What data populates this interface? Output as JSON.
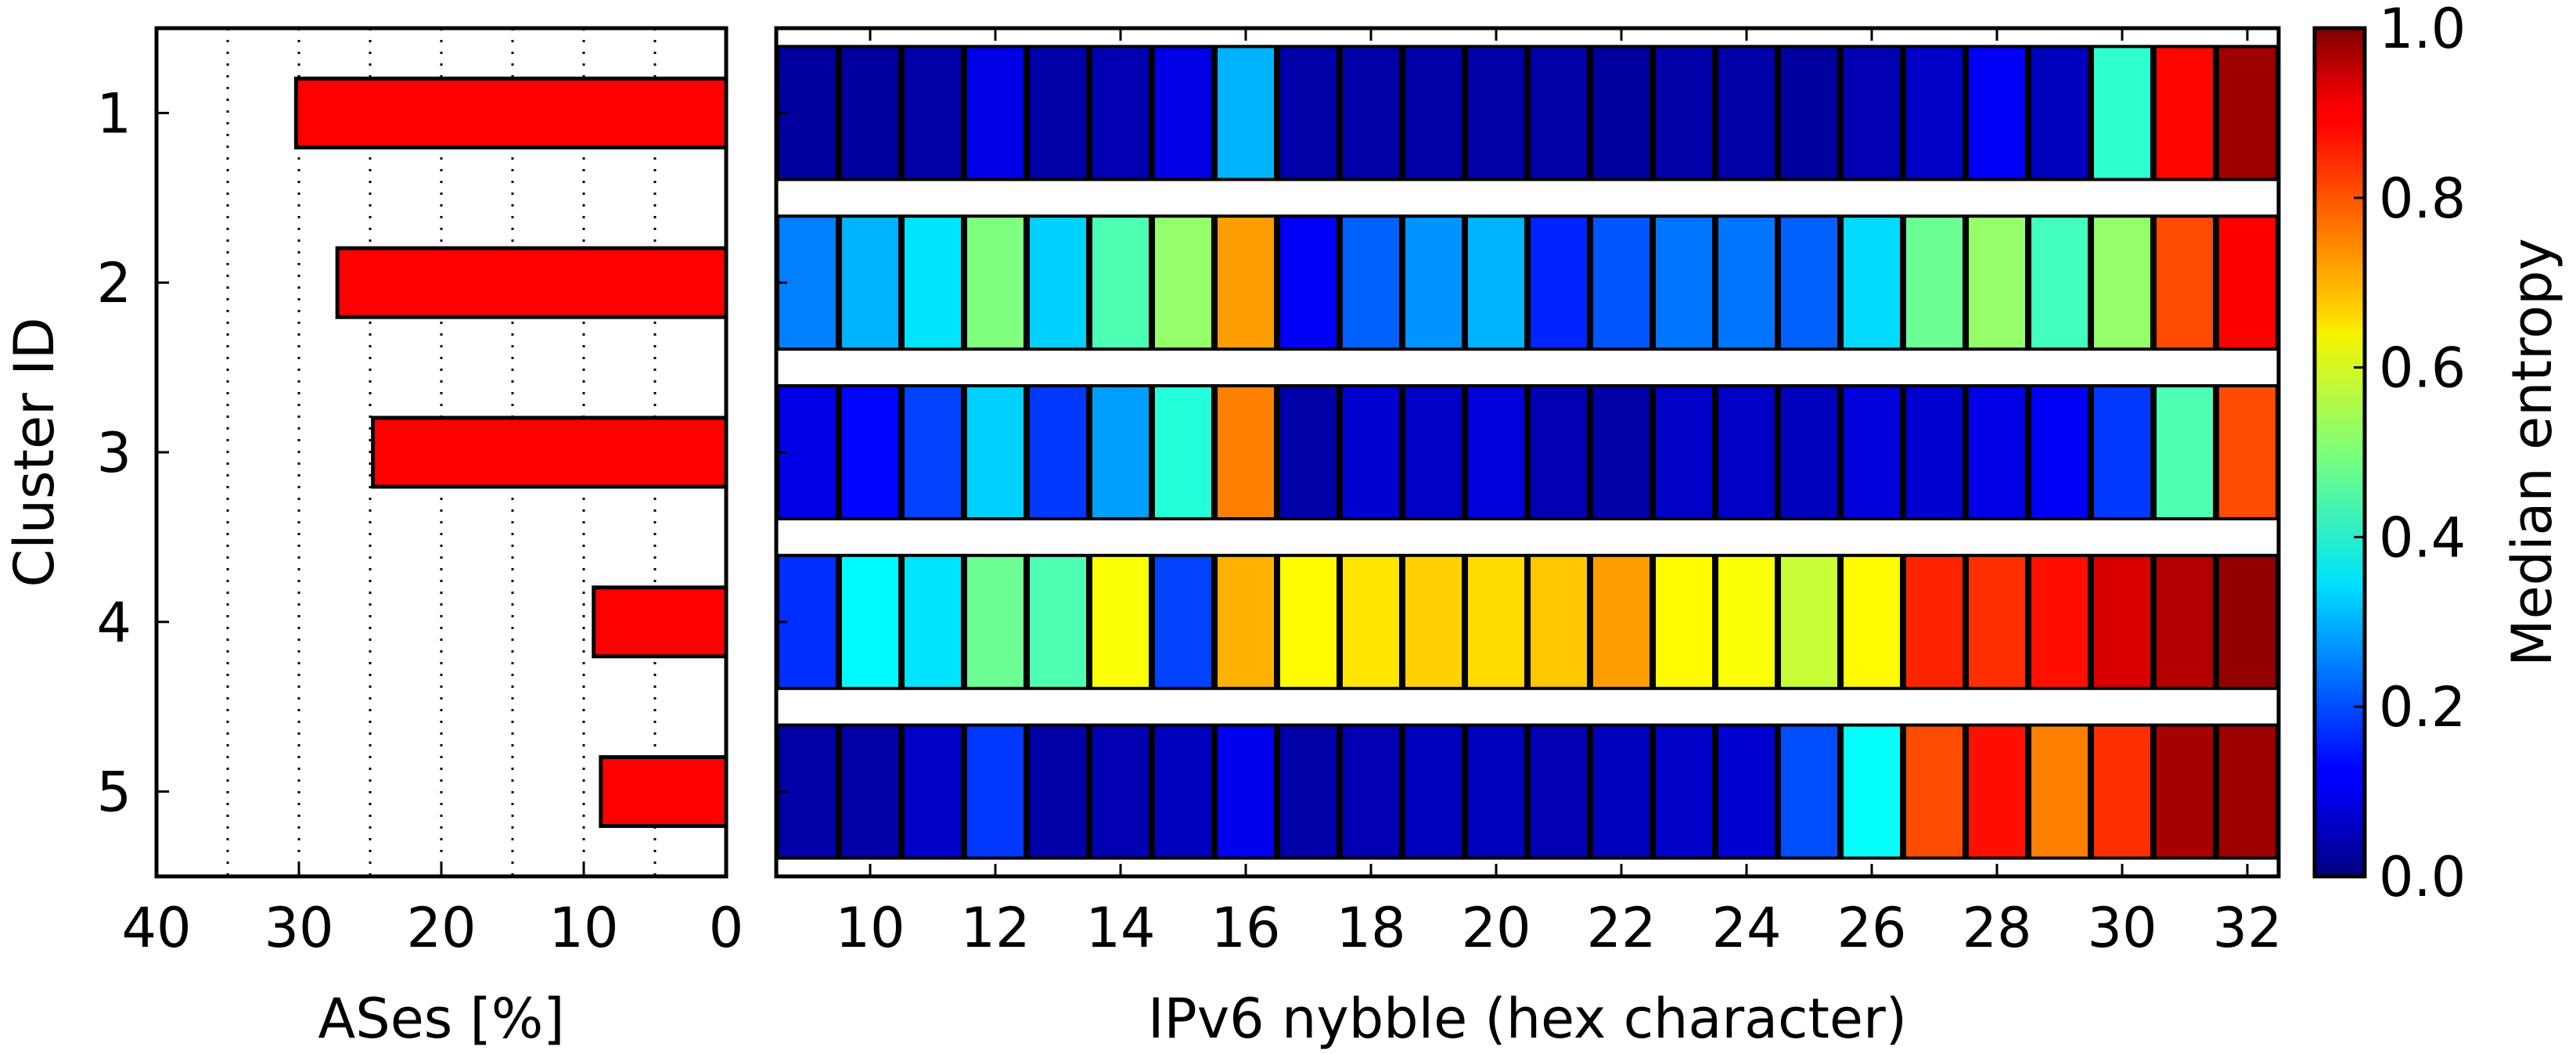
{
  "chart_data": [
    {
      "type": "bar",
      "orientation": "horizontal",
      "ylabel": "Cluster ID",
      "xlabel": "ASes [%]",
      "categories": [
        "1",
        "2",
        "3",
        "4",
        "5"
      ],
      "values": [
        30.2,
        27.3,
        24.8,
        9.3,
        8.8
      ],
      "xlim": [
        40,
        0
      ],
      "x_inverted": true,
      "xticks": [
        "40",
        "30",
        "20",
        "10",
        "0"
      ],
      "grid": "vertical dotted, every 5",
      "bar_color": "#ff0000"
    },
    {
      "type": "heatmap",
      "xlabel": "IPv6 nybble (hex character)",
      "xticks": [
        "10",
        "12",
        "14",
        "16",
        "18",
        "20",
        "22",
        "24",
        "26",
        "28",
        "30",
        "32"
      ],
      "columns": [
        9,
        10,
        11,
        12,
        13,
        14,
        15,
        16,
        17,
        18,
        19,
        20,
        21,
        22,
        23,
        24,
        25,
        26,
        27,
        28,
        29,
        30,
        31,
        32
      ],
      "rows": [
        "1",
        "2",
        "3",
        "4",
        "5"
      ],
      "values": [
        [
          0.03,
          0.03,
          0.04,
          0.1,
          0.04,
          0.05,
          0.1,
          0.3,
          0.04,
          0.04,
          0.04,
          0.04,
          0.04,
          0.03,
          0.04,
          0.04,
          0.03,
          0.05,
          0.07,
          0.12,
          0.06,
          0.42,
          0.87,
          0.97
        ],
        [
          0.25,
          0.3,
          0.35,
          0.5,
          0.33,
          0.45,
          0.52,
          0.72,
          0.12,
          0.22,
          0.27,
          0.3,
          0.16,
          0.21,
          0.24,
          0.24,
          0.22,
          0.34,
          0.48,
          0.52,
          0.44,
          0.52,
          0.8,
          0.88
        ],
        [
          0.1,
          0.13,
          0.19,
          0.33,
          0.18,
          0.28,
          0.41,
          0.75,
          0.04,
          0.08,
          0.07,
          0.09,
          0.05,
          0.04,
          0.07,
          0.07,
          0.06,
          0.09,
          0.08,
          0.1,
          0.12,
          0.18,
          0.45,
          0.8
        ],
        [
          0.17,
          0.37,
          0.35,
          0.48,
          0.45,
          0.62,
          0.19,
          0.7,
          0.63,
          0.65,
          0.67,
          0.66,
          0.68,
          0.72,
          0.63,
          0.62,
          0.57,
          0.63,
          0.84,
          0.83,
          0.86,
          0.91,
          0.95,
          0.98
        ],
        [
          0.04,
          0.04,
          0.07,
          0.18,
          0.04,
          0.05,
          0.06,
          0.11,
          0.04,
          0.05,
          0.06,
          0.06,
          0.05,
          0.06,
          0.07,
          0.08,
          0.2,
          0.38,
          0.8,
          0.86,
          0.75,
          0.83,
          0.96,
          0.97
        ]
      ],
      "colorbar": {
        "label": "Median entropy",
        "range": [
          0.0,
          1.0
        ],
        "ticks": [
          "0.0",
          "0.2",
          "0.4",
          "0.6",
          "0.8",
          "1.0"
        ],
        "colormap": "jet"
      }
    }
  ]
}
